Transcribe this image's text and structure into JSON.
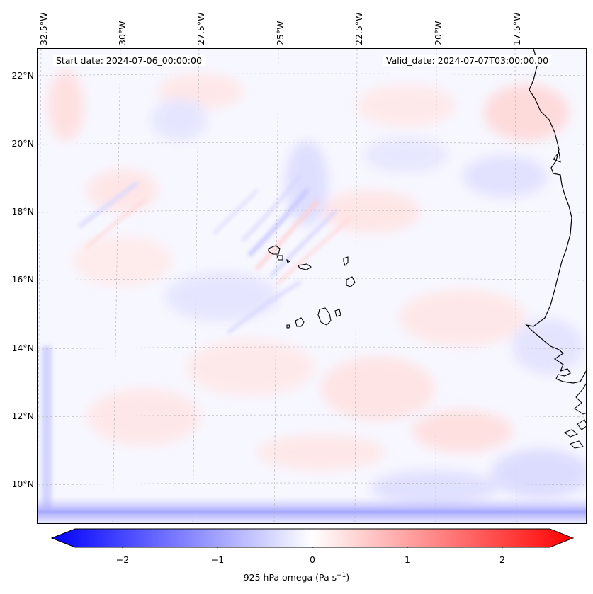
{
  "map": {
    "start_date": "Start date: 2024-07-06_00:00:00",
    "valid_date": "Valid_date: 2024-07-07T03:00:00.00",
    "longitude_labels": [
      "32.5°W",
      "30°W",
      "27.5°W",
      "25°W",
      "22.5°W",
      "20°W",
      "17.5°W"
    ],
    "latitude_labels": [
      "22°N",
      "20°N",
      "18°N",
      "16°N",
      "14°N",
      "12°N",
      "10°N"
    ],
    "extent": {
      "lon_min": -32.6,
      "lon_max": -15.0,
      "lat_min": 8.9,
      "lat_max": 22.7
    },
    "variable": "925 hPa omega"
  },
  "colorbar": {
    "ticks": [
      "−2",
      "−1",
      "0",
      "1",
      "2"
    ],
    "tick_values": [
      -2,
      -1,
      0,
      1,
      2
    ],
    "range": [
      -2.5,
      2.5
    ],
    "label": "925 hPa omega (Pa s",
    "label_sup": "−1",
    "label_end": ")",
    "colormap": "bwr",
    "color_min": "#0000ff",
    "color_mid": "#ffffff",
    "color_max": "#ff0000"
  }
}
